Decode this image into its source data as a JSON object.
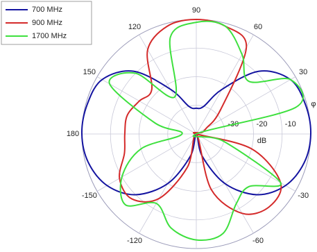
{
  "chart_data": {
    "type": "polar",
    "theta": [
      0,
      15,
      30,
      45,
      60,
      75,
      90,
      105,
      120,
      135,
      150,
      165,
      180,
      -165,
      -150,
      -135,
      -120,
      -105,
      -90,
      -75,
      -60,
      -45,
      -30,
      -15
    ],
    "series": [
      {
        "name": "700 MHz",
        "color": "#1414a0",
        "values": [
          0,
          -0.5,
          -2,
          -9,
          -22,
          -30,
          -31,
          -30,
          -22,
          -9,
          -2,
          -0.5,
          0,
          -1,
          -4,
          -10,
          -20,
          -32,
          -40,
          -32,
          -20,
          -10,
          -4,
          -1
        ]
      },
      {
        "name": "900 MHz",
        "color": "#d42a2a",
        "values": [
          -40,
          -38,
          -36,
          -28,
          -5,
          -1,
          0,
          -1,
          -6,
          -18,
          -17,
          -15,
          -15,
          -14,
          -9,
          -8,
          -14,
          -28,
          -40,
          -20,
          -8,
          -4,
          -6,
          -20
        ]
      },
      {
        "name": "1700 MHz",
        "color": "#3ee03e",
        "values": [
          -40,
          -4,
          -2,
          -14,
          -8,
          -1,
          -1,
          -5,
          -25,
          -10,
          -5,
          -25,
          -35,
          -20,
          -10,
          -5,
          -12,
          -6,
          -3,
          -4,
          -12,
          -14,
          -6,
          -30
        ]
      }
    ],
    "rlim": [
      -40,
      0
    ],
    "rticks": [
      -30,
      -20,
      -10
    ],
    "thetaticks": [
      0,
      30,
      60,
      90,
      120,
      150,
      180,
      -150,
      -120,
      -90,
      -60,
      -30
    ],
    "rlabel": "dB",
    "thetalabel": "φ",
    "grid": true,
    "legend": "upper left"
  }
}
